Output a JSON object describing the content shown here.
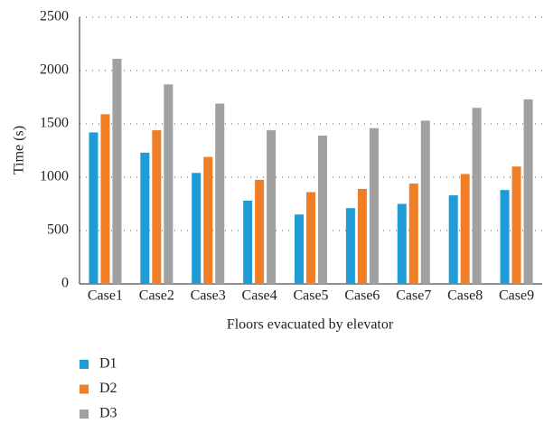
{
  "chart_data": {
    "type": "bar",
    "x_label": "Floors evacuated by elevator",
    "y_label": "Time (s)",
    "categories": [
      "Case1",
      "Case2",
      "Case3",
      "Case4",
      "Case5",
      "Case6",
      "Case7",
      "Case8",
      "Case9"
    ],
    "series": [
      {
        "name": "D1",
        "color": "#1f9bd7",
        "values": [
          1420,
          1230,
          1040,
          780,
          650,
          710,
          750,
          830,
          880
        ]
      },
      {
        "name": "D2",
        "color": "#f07e26",
        "values": [
          1590,
          1440,
          1190,
          975,
          860,
          890,
          940,
          1030,
          1100
        ]
      },
      {
        "name": "D3",
        "color": "#a0a0a0",
        "values": [
          2110,
          1870,
          1690,
          1440,
          1390,
          1460,
          1530,
          1650,
          1730
        ]
      }
    ],
    "ylim": [
      0,
      2500
    ],
    "yticks": [
      0,
      500,
      1000,
      1500,
      2000,
      2500
    ],
    "grid": true,
    "legend": "bottom-left"
  }
}
